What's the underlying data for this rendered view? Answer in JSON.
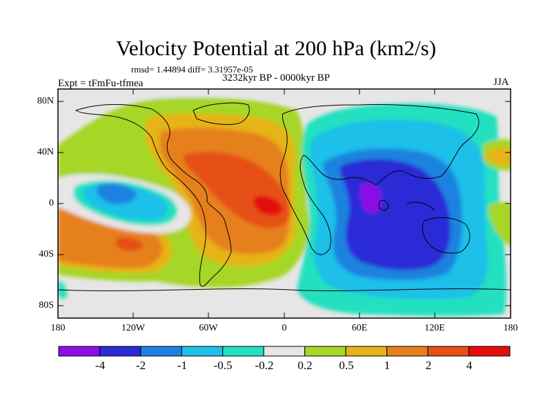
{
  "title": "Velocity Potential at 200 hPa (km2/s)",
  "stats_line": "rmsd= 1.44894 diff= 3.31957e-05",
  "experiment": "Expt = tFmFu-tfmea",
  "period": "3232kyr BP - 0000kyr BP",
  "season": "JJA",
  "lat_labels": [
    "80N",
    "40N",
    "0",
    "40S",
    "80S"
  ],
  "lon_labels": [
    "180",
    "120W",
    "60W",
    "0",
    "60E",
    "120E",
    "180"
  ],
  "colorbar": {
    "colors": [
      "#8a10e6",
      "#2a2ad6",
      "#1e82e0",
      "#1ec0e8",
      "#23e0c0",
      "#e6e6e6",
      "#a6d628",
      "#e6b418",
      "#e6801e",
      "#e65014",
      "#e60e0e"
    ],
    "labels": [
      "-4",
      "-2",
      "-1",
      "-0.5",
      "-0.2",
      "0.2",
      "0.5",
      "1",
      "2",
      "4"
    ]
  }
}
